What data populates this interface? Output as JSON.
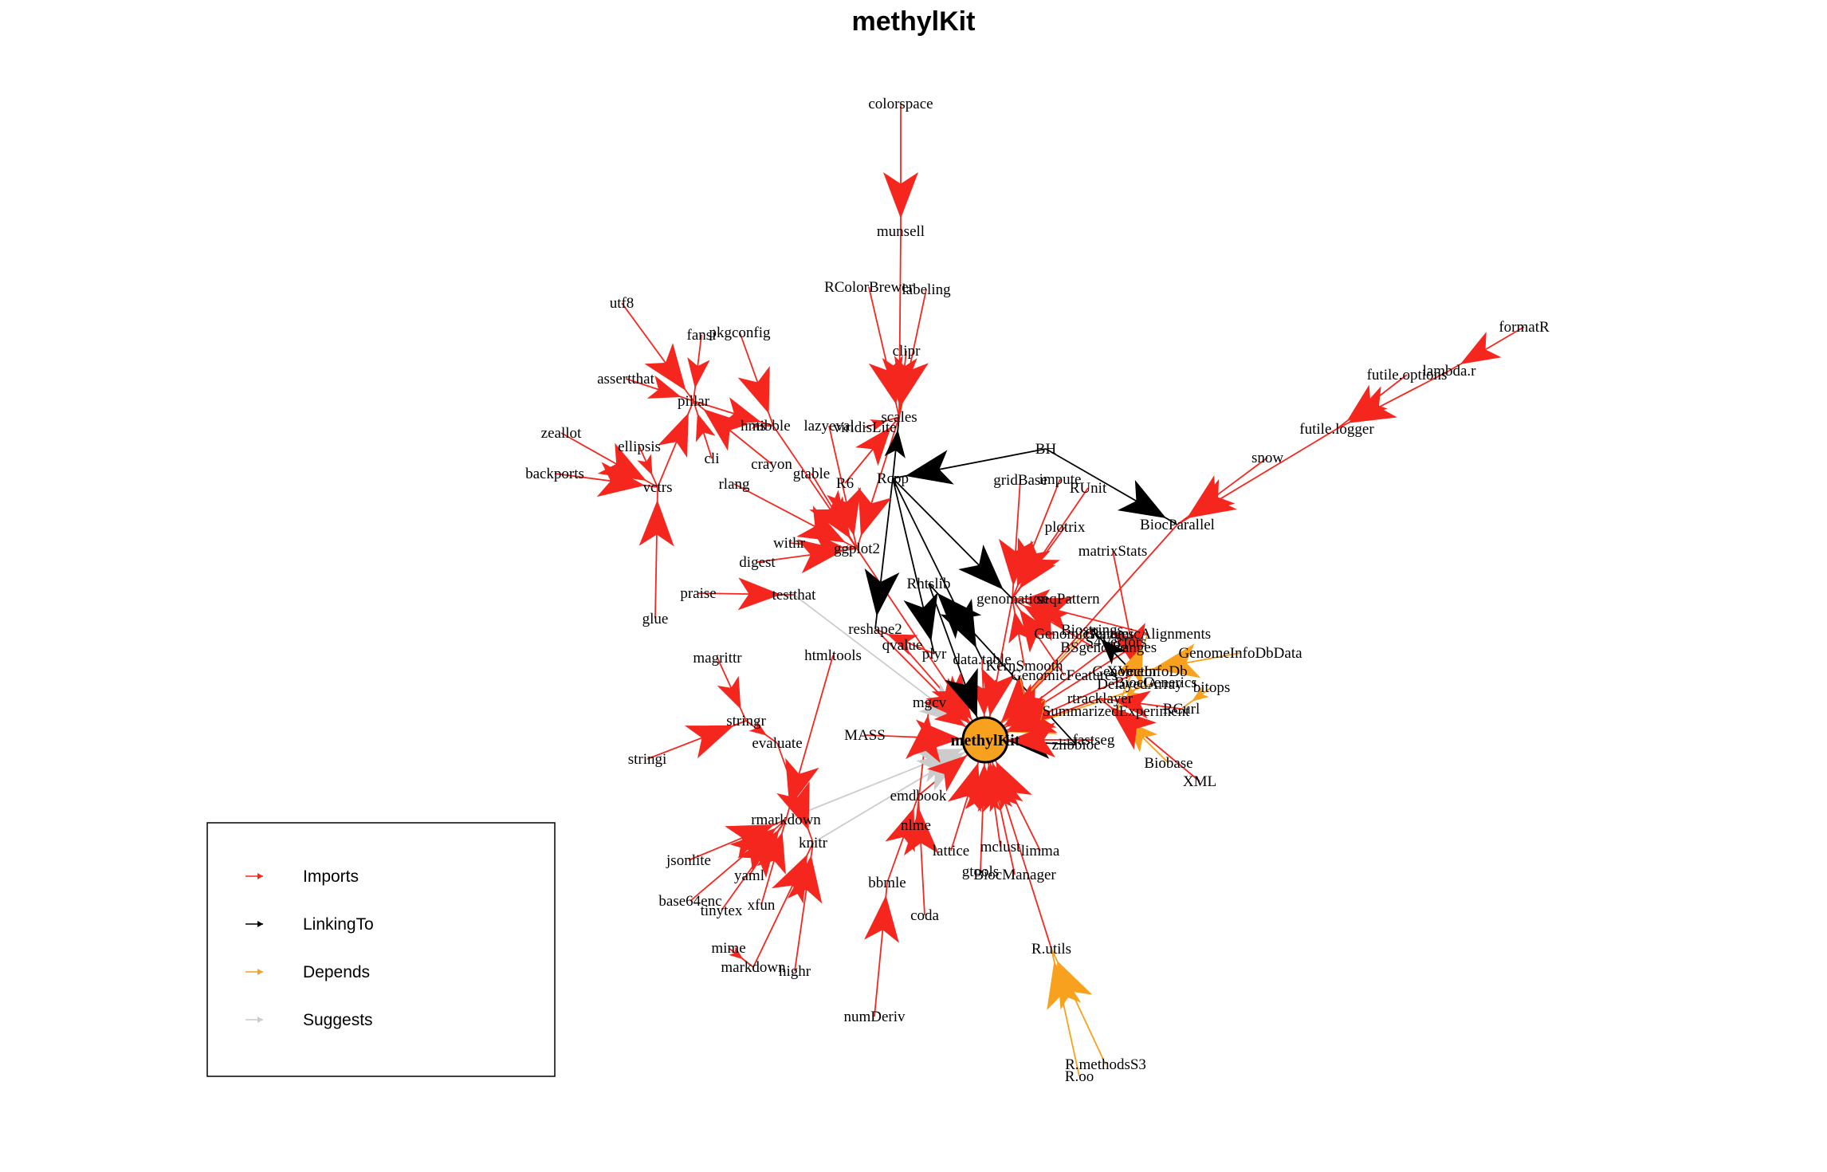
{
  "title": "methylKit",
  "center_node": "methylKit",
  "colors": {
    "imports": "#f5261e",
    "linking_to": "#000000",
    "depends": "#f7a11e",
    "suggests": "#cccccc",
    "center_fill": "#f7a11e"
  },
  "legend": [
    {
      "label": "Imports",
      "color": "#f5261e"
    },
    {
      "label": "LinkingTo",
      "color": "#000000"
    },
    {
      "label": "Depends",
      "color": "#f7a11e"
    },
    {
      "label": "Suggests",
      "color": "#cccccc"
    }
  ],
  "nodes": [
    "colorspace",
    "munsell",
    "RColorBrewer",
    "labeling",
    "clipr",
    "scales",
    "formatR",
    "lambda.r",
    "futile.options",
    "futile.logger",
    "snow",
    "BiocParallel",
    "BH",
    "utf8",
    "fansi",
    "pkgconfig",
    "assertthat",
    "pillar",
    "tibble",
    "lazyeval",
    "viridisLite",
    "zeallot",
    "ellipsis",
    "cli",
    "crayon",
    "backports",
    "vctrs",
    "rlang",
    "gtable",
    "R6",
    "Rcpp",
    "hms",
    "gridBase",
    "impute",
    "RUnit",
    "plotrix",
    "withr",
    "ggplot2",
    "matrixStats",
    "digest",
    "praise",
    "testthat",
    "Rhtslib",
    "glue",
    "reshape2",
    "qvalue",
    "plyr",
    "data.table",
    "genomation",
    "Biostrings",
    "GenomicRanges",
    "S4Vectors",
    "IRanges",
    "GenomicAlignments",
    "BSgenome",
    "XVector",
    "GenomeInfoDb",
    "GenomeInfoDbData",
    "GenomicFeatures",
    "seqPattern",
    "Biobase",
    "BiocGenerics",
    "KernSmooth",
    "rtracklayer",
    "zlibbioc",
    "SummarizedExperiment",
    "DelayedArray",
    "RCurl",
    "bitops",
    "fastseg",
    "XML",
    "magrittr",
    "htmltools",
    "stringr",
    "stringi",
    "mgcv",
    "MASS",
    "evaluate",
    "emdbook",
    "rmarkdown",
    "knitr",
    "nlme",
    "lattice",
    "mclust",
    "limma",
    "gtools",
    "BiocManager",
    "jsonlite",
    "yaml",
    "base64enc",
    "xfun",
    "tinytex",
    "bbmle",
    "coda",
    "mime",
    "markdown",
    "highr",
    "numDeriv",
    "R.utils",
    "R.methodsS3",
    "R.oo"
  ]
}
